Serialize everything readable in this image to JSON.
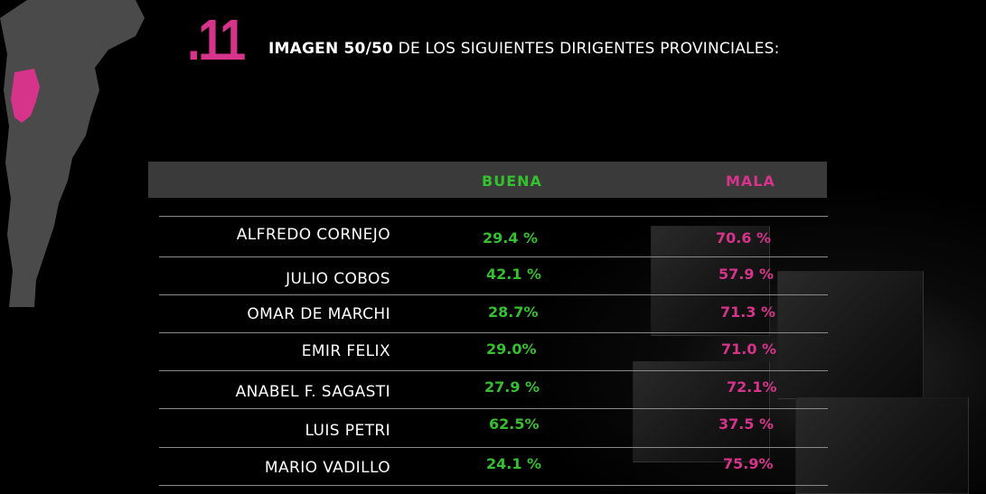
{
  "colors": {
    "accent_pink": "#d6338a",
    "good_green": "#35c02e",
    "header_bar": "#3a3a3a",
    "map_gray": "#4a4a4a"
  },
  "header": {
    "section_number": ".11",
    "title_strong": "IMAGEN 50/50",
    "title_rest": " DE LOS SIGUIENTES DIRIGENTES PROVINCIALES:"
  },
  "chart_data": {
    "type": "table",
    "columns": [
      "BUENA",
      "MALA"
    ],
    "rows": [
      {
        "name": "ALFREDO CORNEJO",
        "buena": 29.4,
        "mala": 70.6,
        "buena_label": "29.4 %",
        "mala_label": "70.6 %"
      },
      {
        "name": "JULIO COBOS",
        "buena": 42.1,
        "mala": 57.9,
        "buena_label": "42.1 %",
        "mala_label": "57.9 %"
      },
      {
        "name": "OMAR DE MARCHI",
        "buena": 28.7,
        "mala": 71.3,
        "buena_label": "28.7%",
        "mala_label": "71.3 %"
      },
      {
        "name": "EMIR FELIX",
        "buena": 29.0,
        "mala": 71.0,
        "buena_label": "29.0%",
        "mala_label": "71.0 %"
      },
      {
        "name": "ANABEL F. SAGASTI",
        "buena": 27.9,
        "mala": 72.1,
        "buena_label": "27.9 %",
        "mala_label": "72.1%"
      },
      {
        "name": "LUIS PETRI",
        "buena": 62.5,
        "mala": 37.5,
        "buena_label": "62.5%",
        "mala_label": "37.5 %"
      },
      {
        "name": "MARIO VADILLO",
        "buena": 24.1,
        "mala": 75.9,
        "buena_label": "24.1 %",
        "mala_label": "75.9%"
      }
    ]
  }
}
